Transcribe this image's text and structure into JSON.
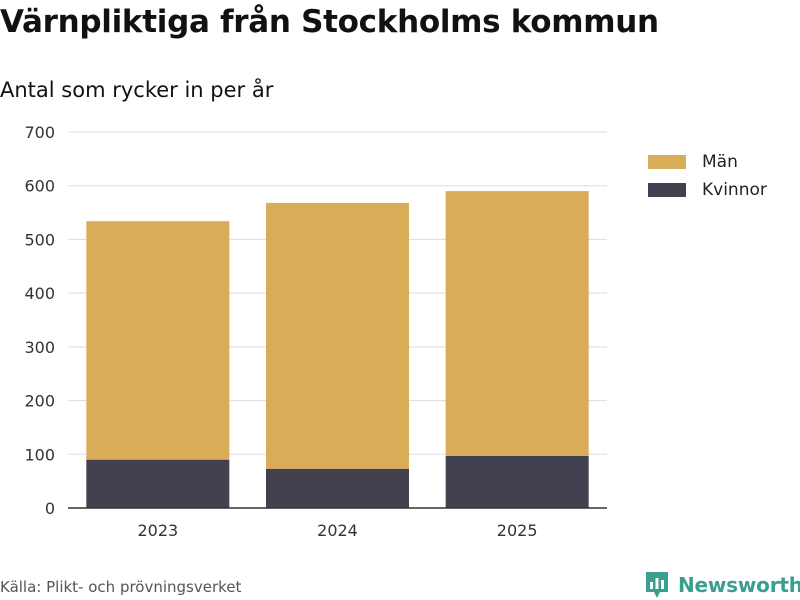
{
  "title": "Värnpliktiga från Stockholms kommun",
  "subtitle": "Antal som rycker in per år",
  "source": "Källa: Plikt- och prövningsverket",
  "brand": "Newsworthy",
  "brand_icon": "newsworthy-logo-icon",
  "colors": {
    "man": "#d9ac5a",
    "kvinnor": "#434050",
    "grid": "#dddddd",
    "axis": "#333333",
    "brand": "#3a9e90"
  },
  "legend": [
    {
      "label": "Män",
      "color": "#d9ac5a"
    },
    {
      "label": "Kvinnor",
      "color": "#434050"
    }
  ],
  "chart_data": {
    "type": "bar",
    "stacked": true,
    "title": "Värnpliktiga från Stockholms kommun",
    "subtitle": "Antal som rycker in per år",
    "categories": [
      "2023",
      "2024",
      "2025"
    ],
    "series": [
      {
        "name": "Kvinnor",
        "values": [
          90,
          73,
          97
        ]
      },
      {
        "name": "Män",
        "values": [
          444,
          495,
          493
        ]
      }
    ],
    "xlabel": "",
    "ylabel": "",
    "ylim": [
      0,
      700
    ],
    "yticks": [
      "0",
      "100",
      "200",
      "300",
      "400",
      "500",
      "600",
      "700"
    ],
    "grid": true,
    "legend_position": "top-right"
  }
}
